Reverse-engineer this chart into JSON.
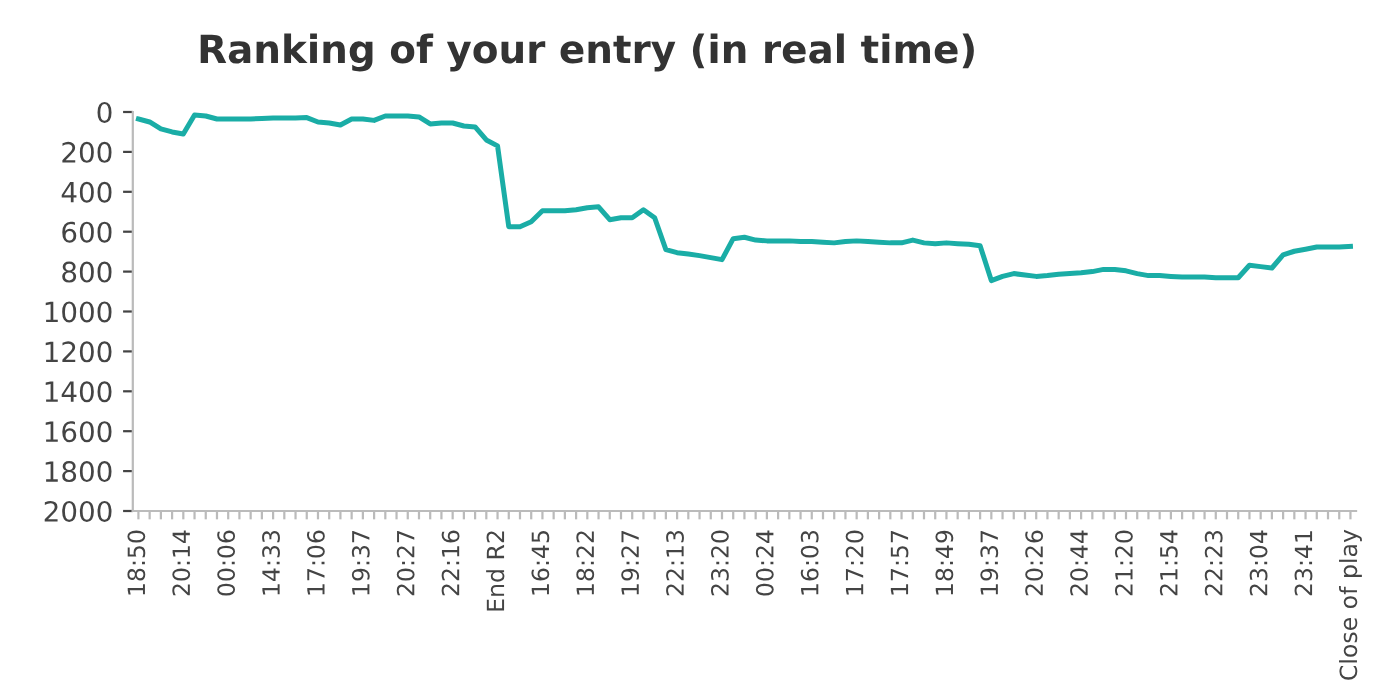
{
  "chart_data": {
    "type": "line",
    "title": "Ranking of your entry (in real time)",
    "categories": [
      "18:50",
      null,
      null,
      null,
      "20:14",
      null,
      null,
      null,
      "00:06",
      null,
      null,
      null,
      "14:33",
      null,
      null,
      null,
      "17:06",
      null,
      null,
      null,
      "19:37",
      null,
      null,
      null,
      "20:27",
      null,
      null,
      null,
      "22:16",
      null,
      null,
      null,
      "End R2",
      null,
      null,
      null,
      "16:45",
      null,
      null,
      null,
      "18:22",
      null,
      null,
      null,
      "19:27",
      null,
      null,
      null,
      "22:13",
      null,
      null,
      null,
      "23:20",
      null,
      null,
      null,
      "00:24",
      null,
      null,
      null,
      "16:03",
      null,
      null,
      null,
      "17:20",
      null,
      null,
      null,
      "17:57",
      null,
      null,
      null,
      "18:49",
      null,
      null,
      null,
      "19:37",
      null,
      null,
      null,
      "20:26",
      null,
      null,
      null,
      "20:44",
      null,
      null,
      null,
      "21:20",
      null,
      null,
      null,
      "21:54",
      null,
      null,
      null,
      "22:23",
      null,
      null,
      null,
      "23:04",
      null,
      null,
      null,
      "23:41",
      null,
      null,
      null,
      "Close of play"
    ],
    "series": [
      {
        "color": "#1aada6",
        "values": [
          35,
          50,
          85,
          100,
          110,
          15,
          20,
          35,
          35,
          35,
          35,
          32,
          30,
          30,
          30,
          28,
          50,
          55,
          65,
          35,
          35,
          42,
          20,
          20,
          20,
          25,
          60,
          55,
          55,
          70,
          75,
          140,
          170,
          575,
          575,
          550,
          495,
          495,
          495,
          490,
          480,
          475,
          540,
          530,
          530,
          490,
          530,
          690,
          705,
          712,
          720,
          730,
          740,
          635,
          628,
          642,
          646,
          646,
          646,
          649,
          649,
          653,
          656,
          649,
          646,
          649,
          653,
          656,
          656,
          642,
          656,
          660,
          656,
          660,
          663,
          670,
          845,
          824,
          810,
          817,
          824,
          820,
          813,
          810,
          806,
          800,
          789,
          789,
          796,
          810,
          820,
          820,
          824,
          827,
          827,
          827,
          831,
          831,
          831,
          768,
          775,
          782,
          716,
          698,
          688,
          677,
          677,
          677,
          674
        ]
      }
    ],
    "ylim": [
      2000,
      0
    ],
    "yticks": [
      0,
      200,
      400,
      600,
      800,
      1000,
      1200,
      1400,
      1600,
      1800,
      2000
    ],
    "grid": false,
    "marker": "none",
    "line_style": "solid"
  }
}
